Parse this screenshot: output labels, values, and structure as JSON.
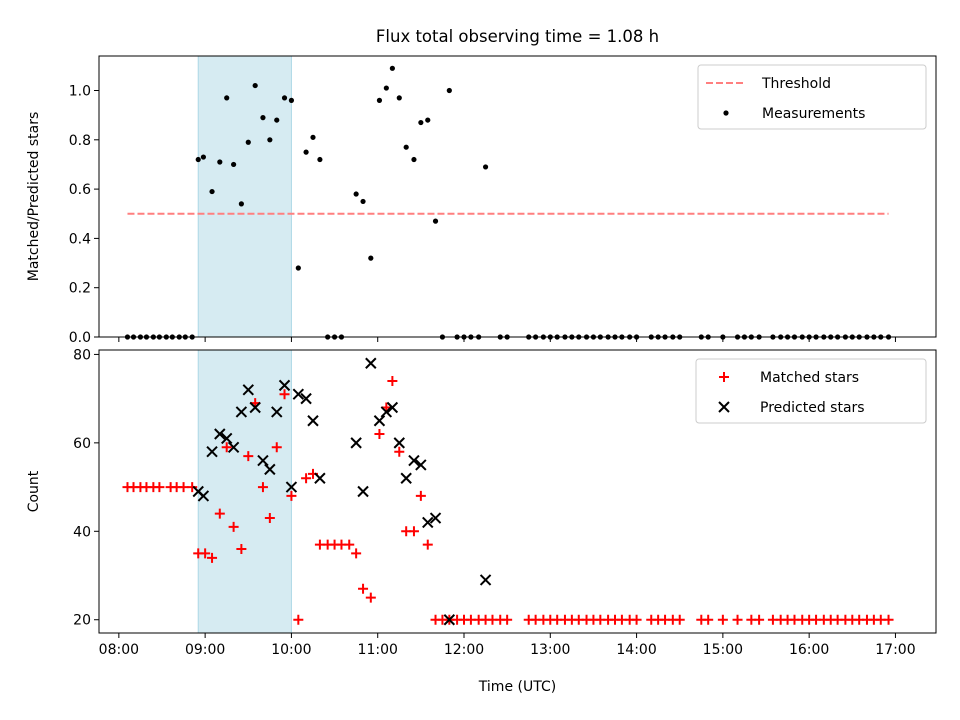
{
  "chart_data": [
    {
      "type": "scatter",
      "title": "Flux total observing time = 1.08 h",
      "xlabel": "",
      "ylabel": "Matched/Predicted stars",
      "xlim": [
        7.77,
        17.47
      ],
      "ylim": [
        0,
        1.14
      ],
      "y_ticks": [
        0,
        0.2,
        0.4,
        0.6,
        0.8,
        1.0
      ],
      "y_tick_labels": [
        "0.0",
        "0.2",
        "0.4",
        "0.6",
        "0.8",
        "1.0"
      ],
      "shaded_span": [
        8.92,
        10.0
      ],
      "legend_position": "top-right",
      "legend": [
        "Threshold",
        "Measurements"
      ],
      "threshold": {
        "name": "Threshold",
        "y": 0.5,
        "x_range": [
          8.1,
          16.92
        ],
        "color": "#ff7f7f",
        "style": "dashed"
      },
      "series": [
        {
          "name": "Measurements",
          "color": "#000000",
          "marker": "dot",
          "points": [
            [
              8.1,
              0
            ],
            [
              8.17,
              0
            ],
            [
              8.25,
              0
            ],
            [
              8.32,
              0
            ],
            [
              8.4,
              0
            ],
            [
              8.47,
              0
            ],
            [
              8.55,
              0
            ],
            [
              8.62,
              0
            ],
            [
              8.7,
              0
            ],
            [
              8.77,
              0
            ],
            [
              8.85,
              0
            ],
            [
              8.92,
              0.72
            ],
            [
              8.98,
              0.73
            ],
            [
              9.08,
              0.59
            ],
            [
              9.17,
              0.71
            ],
            [
              9.25,
              0.97
            ],
            [
              9.33,
              0.7
            ],
            [
              9.42,
              0.54
            ],
            [
              9.5,
              0.79
            ],
            [
              9.58,
              1.02
            ],
            [
              9.67,
              0.89
            ],
            [
              9.75,
              0.8
            ],
            [
              9.83,
              0.88
            ],
            [
              9.92,
              0.97
            ],
            [
              10.0,
              0.96
            ],
            [
              10.08,
              0.28
            ],
            [
              10.17,
              0.75
            ],
            [
              10.25,
              0.81
            ],
            [
              10.33,
              0.72
            ],
            [
              10.42,
              0
            ],
            [
              10.5,
              0
            ],
            [
              10.58,
              0
            ],
            [
              10.75,
              0.58
            ],
            [
              10.83,
              0.55
            ],
            [
              10.92,
              0.32
            ],
            [
              11.02,
              0.96
            ],
            [
              11.1,
              1.01
            ],
            [
              11.17,
              1.09
            ],
            [
              11.25,
              0.97
            ],
            [
              11.33,
              0.77
            ],
            [
              11.42,
              0.72
            ],
            [
              11.5,
              0.87
            ],
            [
              11.58,
              0.88
            ],
            [
              11.67,
              0.47
            ],
            [
              11.75,
              0
            ],
            [
              11.83,
              1.0
            ],
            [
              11.92,
              0
            ],
            [
              12.0,
              0
            ],
            [
              12.08,
              0
            ],
            [
              12.17,
              0
            ],
            [
              12.25,
              0.69
            ],
            [
              12.42,
              0
            ],
            [
              12.5,
              0
            ],
            [
              12.75,
              0
            ],
            [
              12.83,
              0
            ],
            [
              12.92,
              0
            ],
            [
              13.0,
              0
            ],
            [
              13.08,
              0
            ],
            [
              13.17,
              0
            ],
            [
              13.25,
              0
            ],
            [
              13.33,
              0
            ],
            [
              13.42,
              0
            ],
            [
              13.5,
              0
            ],
            [
              13.58,
              0
            ],
            [
              13.67,
              0
            ],
            [
              13.75,
              0
            ],
            [
              13.83,
              0
            ],
            [
              13.92,
              0
            ],
            [
              14.0,
              0
            ],
            [
              14.17,
              0
            ],
            [
              14.25,
              0
            ],
            [
              14.33,
              0
            ],
            [
              14.42,
              0
            ],
            [
              14.5,
              0
            ],
            [
              14.75,
              0
            ],
            [
              14.83,
              0
            ],
            [
              15.0,
              0
            ],
            [
              15.17,
              0
            ],
            [
              15.25,
              0
            ],
            [
              15.33,
              0
            ],
            [
              15.42,
              0
            ],
            [
              15.58,
              0
            ],
            [
              15.67,
              0
            ],
            [
              15.75,
              0
            ],
            [
              15.83,
              0
            ],
            [
              15.92,
              0
            ],
            [
              16.0,
              0
            ],
            [
              16.08,
              0
            ],
            [
              16.17,
              0
            ],
            [
              16.25,
              0
            ],
            [
              16.33,
              0
            ],
            [
              16.42,
              0
            ],
            [
              16.5,
              0
            ],
            [
              16.58,
              0
            ],
            [
              16.67,
              0
            ],
            [
              16.75,
              0
            ],
            [
              16.83,
              0
            ],
            [
              16.92,
              0
            ]
          ]
        }
      ]
    },
    {
      "type": "scatter",
      "title": "",
      "xlabel": "Time (UTC)",
      "ylabel": "Count",
      "xlim": [
        7.77,
        17.47
      ],
      "ylim": [
        17,
        81
      ],
      "y_ticks": [
        20,
        40,
        60,
        80
      ],
      "y_tick_labels": [
        "20",
        "40",
        "60",
        "80"
      ],
      "x_ticks": [
        8,
        9,
        10,
        11,
        12,
        13,
        14,
        15,
        16,
        17
      ],
      "x_tick_labels": [
        "08:00",
        "09:00",
        "10:00",
        "11:00",
        "12:00",
        "13:00",
        "14:00",
        "15:00",
        "16:00",
        "17:00"
      ],
      "shaded_span": [
        8.92,
        10.0
      ],
      "legend_position": "top-right",
      "legend": [
        "Matched stars",
        "Predicted stars"
      ],
      "series": [
        {
          "name": "Matched stars",
          "color": "#ff0000",
          "marker": "plus",
          "points": [
            [
              8.1,
              50
            ],
            [
              8.17,
              50
            ],
            [
              8.25,
              50
            ],
            [
              8.32,
              50
            ],
            [
              8.4,
              50
            ],
            [
              8.47,
              50
            ],
            [
              8.6,
              50
            ],
            [
              8.67,
              50
            ],
            [
              8.75,
              50
            ],
            [
              8.85,
              50
            ],
            [
              8.92,
              35
            ],
            [
              9.0,
              35
            ],
            [
              9.08,
              34
            ],
            [
              9.17,
              44
            ],
            [
              9.25,
              59
            ],
            [
              9.33,
              41
            ],
            [
              9.42,
              36
            ],
            [
              9.5,
              57
            ],
            [
              9.58,
              69
            ],
            [
              9.67,
              50
            ],
            [
              9.75,
              43
            ],
            [
              9.83,
              59
            ],
            [
              9.92,
              71
            ],
            [
              10.0,
              48
            ],
            [
              10.08,
              20
            ],
            [
              10.17,
              52
            ],
            [
              10.25,
              53
            ],
            [
              10.33,
              37
            ],
            [
              10.42,
              37
            ],
            [
              10.5,
              37
            ],
            [
              10.58,
              37
            ],
            [
              10.67,
              37
            ],
            [
              10.75,
              35
            ],
            [
              10.83,
              27
            ],
            [
              10.92,
              25
            ],
            [
              11.02,
              62
            ],
            [
              11.1,
              68
            ],
            [
              11.17,
              74
            ],
            [
              11.25,
              58
            ],
            [
              11.33,
              40
            ],
            [
              11.42,
              40
            ],
            [
              11.5,
              48
            ],
            [
              11.58,
              37
            ],
            [
              11.67,
              20
            ],
            [
              11.75,
              20
            ],
            [
              11.83,
              20
            ],
            [
              11.92,
              20
            ],
            [
              12.0,
              20
            ],
            [
              12.08,
              20
            ],
            [
              12.17,
              20
            ],
            [
              12.25,
              20
            ],
            [
              12.33,
              20
            ],
            [
              12.42,
              20
            ],
            [
              12.5,
              20
            ],
            [
              12.75,
              20
            ],
            [
              12.83,
              20
            ],
            [
              12.92,
              20
            ],
            [
              13.0,
              20
            ],
            [
              13.08,
              20
            ],
            [
              13.17,
              20
            ],
            [
              13.25,
              20
            ],
            [
              13.33,
              20
            ],
            [
              13.42,
              20
            ],
            [
              13.5,
              20
            ],
            [
              13.58,
              20
            ],
            [
              13.67,
              20
            ],
            [
              13.75,
              20
            ],
            [
              13.83,
              20
            ],
            [
              13.92,
              20
            ],
            [
              14.0,
              20
            ],
            [
              14.17,
              20
            ],
            [
              14.25,
              20
            ],
            [
              14.33,
              20
            ],
            [
              14.42,
              20
            ],
            [
              14.5,
              20
            ],
            [
              14.75,
              20
            ],
            [
              14.83,
              20
            ],
            [
              15.0,
              20
            ],
            [
              15.17,
              20
            ],
            [
              15.33,
              20
            ],
            [
              15.42,
              20
            ],
            [
              15.58,
              20
            ],
            [
              15.67,
              20
            ],
            [
              15.75,
              20
            ],
            [
              15.83,
              20
            ],
            [
              15.92,
              20
            ],
            [
              16.0,
              20
            ],
            [
              16.08,
              20
            ],
            [
              16.17,
              20
            ],
            [
              16.25,
              20
            ],
            [
              16.33,
              20
            ],
            [
              16.42,
              20
            ],
            [
              16.5,
              20
            ],
            [
              16.58,
              20
            ],
            [
              16.67,
              20
            ],
            [
              16.75,
              20
            ],
            [
              16.83,
              20
            ],
            [
              16.92,
              20
            ]
          ]
        },
        {
          "name": "Predicted stars",
          "color": "#000000",
          "marker": "x",
          "points": [
            [
              8.92,
              49
            ],
            [
              8.98,
              48
            ],
            [
              9.08,
              58
            ],
            [
              9.17,
              62
            ],
            [
              9.25,
              61
            ],
            [
              9.33,
              59
            ],
            [
              9.42,
              67
            ],
            [
              9.5,
              72
            ],
            [
              9.58,
              68
            ],
            [
              9.67,
              56
            ],
            [
              9.75,
              54
            ],
            [
              9.83,
              67
            ],
            [
              9.92,
              73
            ],
            [
              10.0,
              50
            ],
            [
              10.08,
              71
            ],
            [
              10.17,
              70
            ],
            [
              10.25,
              65
            ],
            [
              10.33,
              52
            ],
            [
              10.75,
              60
            ],
            [
              10.83,
              49
            ],
            [
              10.92,
              78
            ],
            [
              11.02,
              65
            ],
            [
              11.1,
              67
            ],
            [
              11.17,
              68
            ],
            [
              11.25,
              60
            ],
            [
              11.33,
              52
            ],
            [
              11.42,
              56
            ],
            [
              11.5,
              55
            ],
            [
              11.58,
              42
            ],
            [
              11.67,
              43
            ],
            [
              11.83,
              20
            ],
            [
              12.25,
              29
            ]
          ]
        }
      ]
    }
  ]
}
